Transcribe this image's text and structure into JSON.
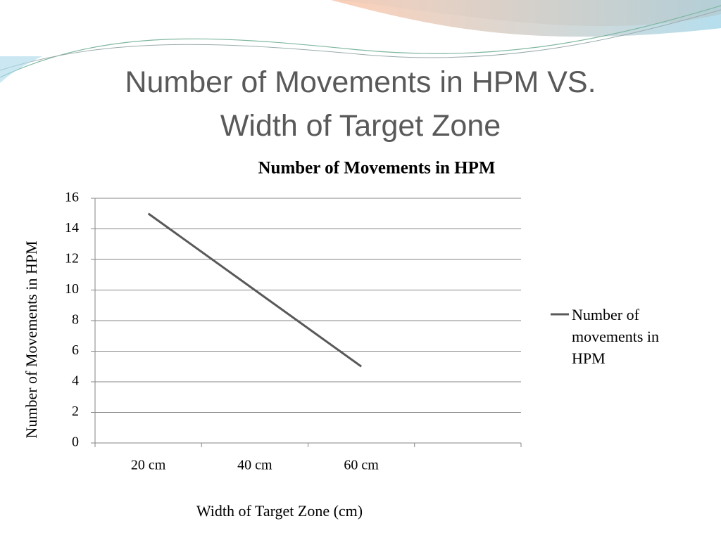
{
  "slide_title": "Number of Movements in HPM VS. Width of Target Zone",
  "chart_data": {
    "type": "line",
    "title": "Number of Movements in HPM",
    "x_label": "Width of Target Zone (cm)",
    "y_label": "Number of Movements in HPM",
    "categories": [
      "20 cm",
      "40 cm",
      "60 cm",
      null
    ],
    "series": [
      {
        "name": "Number of movements in HPM",
        "color": "#595959",
        "values": [
          15,
          10,
          5,
          null
        ]
      }
    ],
    "ylim": [
      0,
      16
    ],
    "yticks": [
      0,
      2,
      4,
      6,
      8,
      10,
      12,
      14,
      16
    ],
    "grid": true,
    "legend": "right"
  }
}
